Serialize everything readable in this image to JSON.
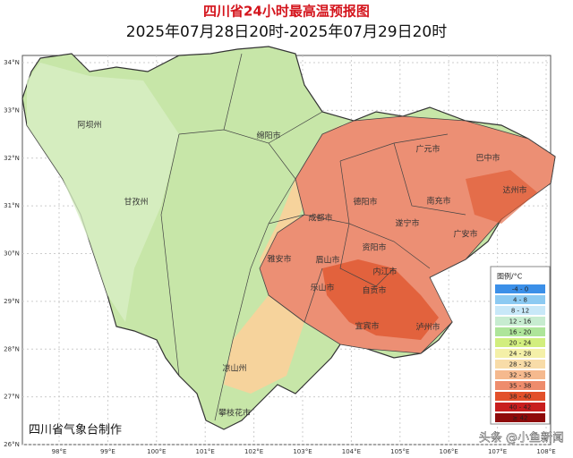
{
  "header": {
    "title": "四川省24小时最高温预报图",
    "subtitle": "2025年07月28日20时-2025年07月29日20时"
  },
  "axes": {
    "lat_ticks": [
      "34°N",
      "33°N",
      "32°N",
      "31°N",
      "30°N",
      "29°N",
      "28°N",
      "27°N",
      "26°N"
    ],
    "lon_ticks": [
      "98°E",
      "99°E",
      "100°E",
      "101°E",
      "102°E",
      "103°E",
      "104°E",
      "105°E",
      "106°E",
      "107°E",
      "108°E"
    ]
  },
  "legend": {
    "title": "图例/°C",
    "items": [
      {
        "label": "-4 - 0",
        "color": "#3b8fe8"
      },
      {
        "label": "4 - 8",
        "color": "#8ccaf2"
      },
      {
        "label": "8 - 12",
        "color": "#c8e8f8"
      },
      {
        "label": "12 - 16",
        "color": "#c7ecd0"
      },
      {
        "label": "16 - 20",
        "color": "#aee59a"
      },
      {
        "label": "20 - 24",
        "color": "#d2ee7e"
      },
      {
        "label": "24 - 28",
        "color": "#f4f0a8"
      },
      {
        "label": "28 - 32",
        "color": "#f8dca8"
      },
      {
        "label": "32 - 35",
        "color": "#f5b98e"
      },
      {
        "label": "35 - 38",
        "color": "#ee8c6c"
      },
      {
        "label": "38 - 40",
        "color": "#e2502a"
      },
      {
        "label": "40 - 42",
        "color": "#c81e1e"
      },
      {
        "label": "≥ 42",
        "color": "#8e0a0a"
      }
    ]
  },
  "cities": [
    "阿坝州",
    "甘孜州",
    "绵阳市",
    "广元市",
    "巴中市",
    "达州市",
    "南充市",
    "德阳市",
    "成都市",
    "遂宁市",
    "广安市",
    "资阳市",
    "内江市",
    "雅安市",
    "眉山市",
    "乐山市",
    "自贡市",
    "宜宾市",
    "泸州市",
    "凉山州",
    "攀枝花市"
  ],
  "footer": {
    "credit": "四川省气象台制作",
    "watermark": "头条 @小鱼新闻"
  }
}
